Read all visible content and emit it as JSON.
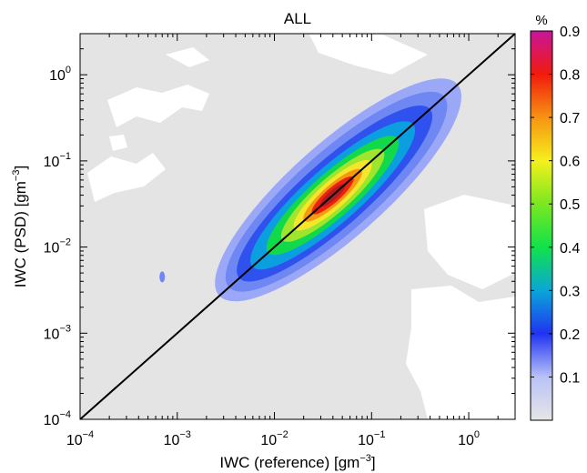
{
  "chart_data": {
    "type": "heatmap",
    "title": "ALL",
    "xlabel": {
      "text": "IWC (reference) [gm",
      "sup": "−3",
      "end": "]"
    },
    "ylabel": {
      "text": "IWC (PSD) [gm",
      "sup": "−3",
      "end": "]"
    },
    "x_scale": "log",
    "y_scale": "log",
    "xlim": [
      0.0001,
      3.0
    ],
    "ylim": [
      0.0001,
      3.0
    ],
    "x_ticks": [
      {
        "value": 0.0001,
        "base": "10",
        "exp": "−4"
      },
      {
        "value": 0.001,
        "base": "10",
        "exp": "−3"
      },
      {
        "value": 0.01,
        "base": "10",
        "exp": "−2"
      },
      {
        "value": 0.1,
        "base": "10",
        "exp": "−1"
      },
      {
        "value": 1,
        "base": "10",
        "exp": "0"
      }
    ],
    "y_ticks": [
      {
        "value": 0.0001,
        "base": "10",
        "exp": "−4"
      },
      {
        "value": 0.001,
        "base": "10",
        "exp": "−3"
      },
      {
        "value": 0.01,
        "base": "10",
        "exp": "−2"
      },
      {
        "value": 0.1,
        "base": "10",
        "exp": "−1"
      },
      {
        "value": 1,
        "base": "10",
        "exp": "0"
      }
    ],
    "reference_line": {
      "type": "one-to-one",
      "color": "#000000"
    },
    "background_color": "#e4e4e4",
    "density_center_log10": [
      -1.4,
      -1.4
    ],
    "contour_levels": [
      {
        "level": 0.05,
        "color": "#9aa8f7"
      },
      {
        "level": 0.12,
        "color": "#6f87f3"
      },
      {
        "level": 0.2,
        "color": "#2f52ee"
      },
      {
        "level": 0.3,
        "color": "#0b9fe0"
      },
      {
        "level": 0.4,
        "color": "#12d94a"
      },
      {
        "level": 0.5,
        "color": "#9ee52e"
      },
      {
        "level": 0.6,
        "color": "#f4e62a"
      },
      {
        "level": 0.7,
        "color": "#f59a10"
      },
      {
        "level": 0.8,
        "color": "#ee2010"
      },
      {
        "level": 0.88,
        "color": "#b01c20"
      }
    ],
    "colorbar": {
      "label": "%",
      "range": [
        0,
        0.9
      ],
      "ticks": [
        "0.1",
        "0.2",
        "0.3",
        "0.4",
        "0.5",
        "0.6",
        "0.7",
        "0.8",
        "0.9"
      ],
      "stops": [
        {
          "v": 0.0,
          "color": "#e6e6e6"
        },
        {
          "v": 0.1,
          "color": "#b9c2f7"
        },
        {
          "v": 0.2,
          "color": "#1f33f2"
        },
        {
          "v": 0.3,
          "color": "#0aa6d8"
        },
        {
          "v": 0.4,
          "color": "#11e24a"
        },
        {
          "v": 0.5,
          "color": "#7ae820"
        },
        {
          "v": 0.6,
          "color": "#f5f01c"
        },
        {
          "v": 0.7,
          "color": "#f79312"
        },
        {
          "v": 0.8,
          "color": "#f11a0c"
        },
        {
          "v": 0.9,
          "color": "#c7159c"
        }
      ]
    }
  }
}
